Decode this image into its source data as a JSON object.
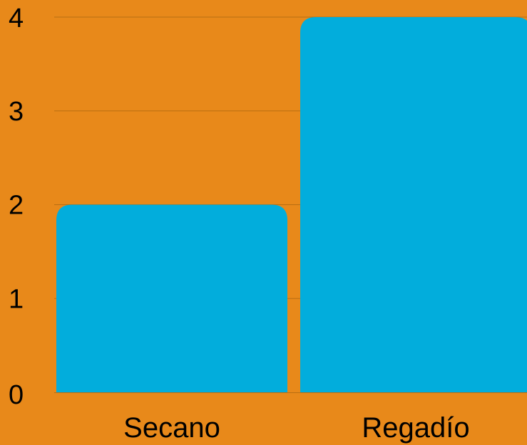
{
  "chart_data": {
    "type": "bar",
    "categories": [
      "Secano",
      "Regadío"
    ],
    "values": [
      2,
      4
    ],
    "ylim": [
      0,
      4
    ],
    "yticks": [
      "0",
      "1",
      "2",
      "3",
      "4"
    ],
    "grid": true,
    "colors": {
      "background": "#E8891A",
      "bar": "#02ADDC",
      "gridline": "#B86E12",
      "text": "#000000"
    }
  }
}
